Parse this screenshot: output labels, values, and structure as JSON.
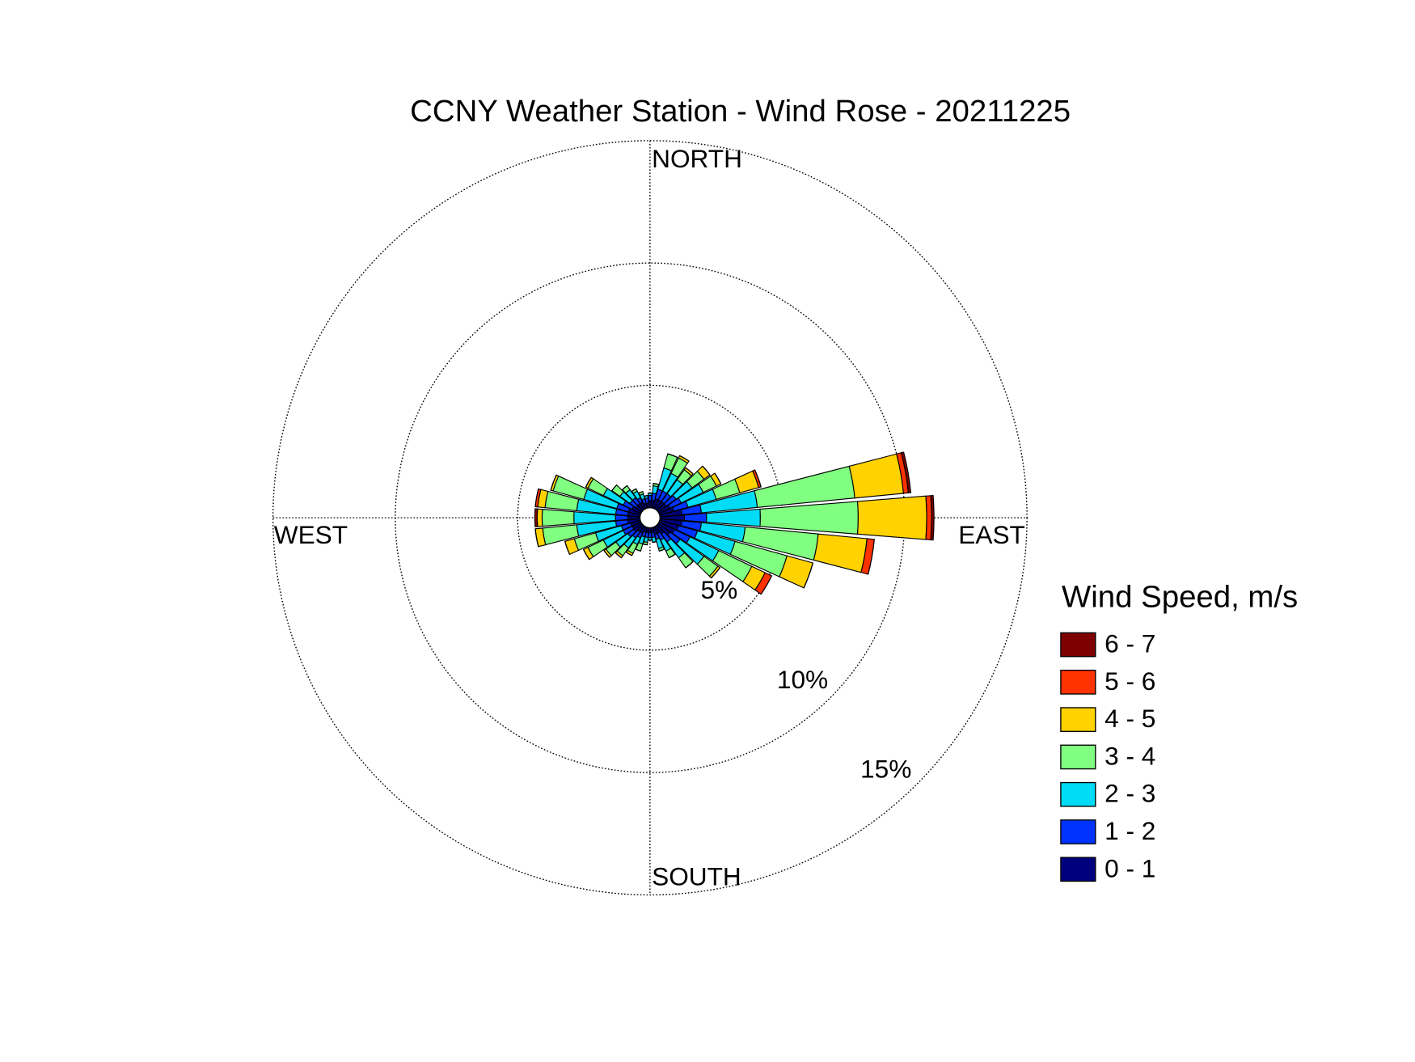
{
  "chart_data": {
    "type": "windrose",
    "title": "CCNY Weather Station - Wind Rose - 20211225",
    "direction_labels": [
      "NORTH",
      "EAST",
      "SOUTH",
      "WEST"
    ],
    "legend_title": "Wind Speed, m/s",
    "x": [
      0,
      10,
      20,
      30,
      40,
      50,
      60,
      70,
      80,
      90,
      100,
      110,
      120,
      130,
      140,
      150,
      160,
      170,
      180,
      190,
      200,
      210,
      220,
      230,
      240,
      250,
      260,
      270,
      280,
      290,
      300,
      310,
      320,
      330,
      340,
      350
    ],
    "xlim": [
      0,
      360
    ],
    "rlim": [
      0,
      15
    ],
    "rticks": [
      {
        "value": 5,
        "label": "5%"
      },
      {
        "value": 10,
        "label": "10%"
      },
      {
        "value": 15,
        "label": "15%"
      }
    ],
    "grid": true,
    "legend": "right",
    "series": [
      {
        "name": "0 - 1",
        "color": "#00007f",
        "values": [
          0.3,
          0.3,
          0.4,
          0.4,
          0.4,
          0.4,
          0.5,
          0.6,
          0.9,
          1.0,
          0.9,
          0.8,
          0.7,
          0.6,
          0.4,
          0.3,
          0.3,
          0.2,
          0.2,
          0.2,
          0.2,
          0.3,
          0.3,
          0.4,
          0.4,
          0.4,
          0.5,
          0.5,
          0.5,
          0.5,
          0.4,
          0.3,
          0.3,
          0.3,
          0.2,
          0.2
        ]
      },
      {
        "name": "1 - 2",
        "color": "#0033ff",
        "values": [
          0.2,
          0.3,
          0.4,
          0.4,
          0.4,
          0.5,
          0.5,
          0.6,
          0.8,
          0.9,
          0.8,
          0.8,
          0.7,
          0.5,
          0.4,
          0.3,
          0.2,
          0.2,
          0.2,
          0.2,
          0.2,
          0.2,
          0.3,
          0.3,
          0.4,
          0.4,
          0.5,
          0.5,
          0.5,
          0.5,
          0.4,
          0.3,
          0.3,
          0.2,
          0.2,
          0.2
        ]
      },
      {
        "name": "2 - 3",
        "color": "#00dcf5",
        "values": [
          0.1,
          0.3,
          0.9,
          0.8,
          0.7,
          0.8,
          1.0,
          1.2,
          2.3,
          2.2,
          1.8,
          1.6,
          1.3,
          1.2,
          0.8,
          0.5,
          0.4,
          0.2,
          0.1,
          0.2,
          0.3,
          0.3,
          0.5,
          0.6,
          0.9,
          1.1,
          1.6,
          1.7,
          1.6,
          1.4,
          0.9,
          0.5,
          0.4,
          0.3,
          0.2,
          0.1
        ]
      },
      {
        "name": "3 - 4",
        "color": "#80ff80",
        "values": [
          0,
          0.1,
          0.6,
          0.7,
          0.5,
          0.6,
          0.6,
          1.0,
          4.0,
          4.0,
          3.0,
          2.2,
          1.5,
          0.7,
          0.5,
          0.3,
          0.1,
          0,
          0,
          0.1,
          0.3,
          0.4,
          0.4,
          0.5,
          0.7,
          0.9,
          1.4,
          1.3,
          1.3,
          1.3,
          0.7,
          0.4,
          0.2,
          0.1,
          0.1,
          0
        ]
      },
      {
        "name": "4 - 5",
        "color": "#ffd200",
        "values": [
          0,
          0,
          0,
          0.1,
          0.1,
          0.3,
          0.2,
          0.8,
          2.0,
          2.8,
          2.0,
          1.1,
          0.6,
          0.1,
          0,
          0,
          0,
          0,
          0,
          0,
          0,
          0.1,
          0.1,
          0.1,
          0.2,
          0.4,
          0.3,
          0.2,
          0.3,
          0.1,
          0.1,
          0,
          0,
          0,
          0,
          0
        ]
      },
      {
        "name": "5 - 6",
        "color": "#ff3300",
        "values": [
          0,
          0,
          0,
          0,
          0,
          0,
          0,
          0.1,
          0.2,
          0.2,
          0.3,
          0,
          0.3,
          0,
          0,
          0,
          0,
          0,
          0,
          0,
          0,
          0,
          0,
          0,
          0,
          0,
          0,
          0,
          0.1,
          0,
          0,
          0,
          0,
          0,
          0,
          0
        ]
      },
      {
        "name": "6 - 7",
        "color": "#7f0000",
        "values": [
          0,
          0,
          0,
          0,
          0,
          0,
          0,
          0,
          0.1,
          0.1,
          0,
          0,
          0,
          0,
          0,
          0,
          0,
          0,
          0,
          0,
          0,
          0,
          0,
          0,
          0,
          0,
          0,
          0.1,
          0,
          0,
          0,
          0,
          0,
          0,
          0,
          0
        ]
      }
    ]
  }
}
